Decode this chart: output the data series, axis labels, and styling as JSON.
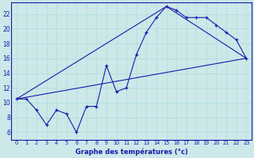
{
  "xlabel": "Graphe des températures (°c)",
  "bg_color": "#cce8e8",
  "line_color": "#1a1aaa",
  "xlim": [
    -0.5,
    23.5
  ],
  "ylim": [
    5,
    23.5
  ],
  "xticks": [
    0,
    1,
    2,
    3,
    4,
    5,
    6,
    7,
    8,
    9,
    10,
    11,
    12,
    13,
    14,
    15,
    16,
    17,
    18,
    19,
    20,
    21,
    22,
    23
  ],
  "yticks": [
    6,
    8,
    10,
    12,
    14,
    16,
    18,
    20,
    22
  ],
  "main_x": [
    0,
    1,
    2,
    3,
    4,
    5,
    6,
    7,
    8,
    9,
    10,
    11,
    12,
    13,
    14,
    15,
    16,
    17,
    18,
    19,
    20,
    21,
    22,
    23
  ],
  "main_y": [
    10.5,
    10.5,
    9.0,
    7.0,
    9.0,
    8.5,
    6.0,
    9.5,
    9.5,
    15.0,
    11.5,
    12.0,
    16.5,
    19.5,
    21.5,
    23.0,
    22.5,
    21.5,
    21.5,
    21.5,
    20.5,
    19.5,
    18.5,
    16.0
  ],
  "line1_x": [
    0,
    23
  ],
  "line1_y": [
    10.5,
    16.0
  ],
  "line2_x": [
    0,
    15,
    23
  ],
  "line2_y": [
    10.5,
    23.0,
    16.0
  ],
  "grid_color": "#aadddd",
  "xlabel_fontsize": 6.0,
  "xtick_fontsize": 4.8,
  "ytick_fontsize": 5.5
}
